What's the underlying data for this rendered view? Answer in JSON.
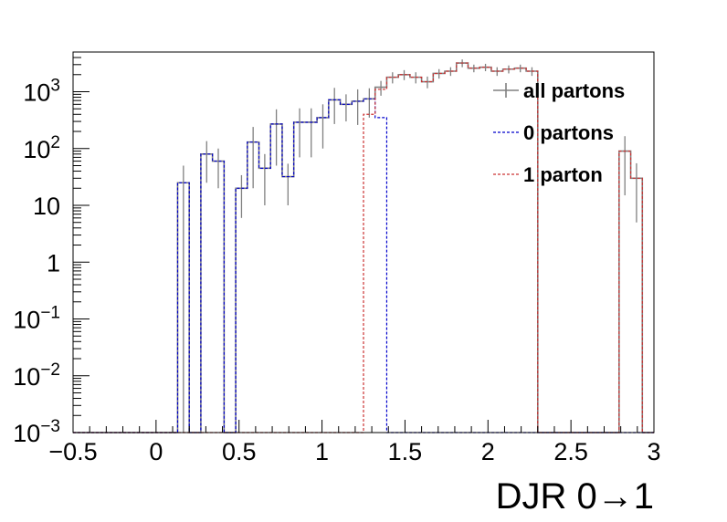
{
  "chart_data": {
    "type": "line",
    "xlabel": "DJR 0→1",
    "ylabel": "",
    "title": "",
    "xlim": [
      -0.5,
      3
    ],
    "ylim": [
      0.001,
      5000
    ],
    "yscale": "log",
    "x_ticks": [
      "−0.5",
      "0",
      "0.5",
      "1",
      "1.5",
      "2",
      "2.5",
      "3"
    ],
    "x_tick_values": [
      -0.5,
      0,
      0.5,
      1,
      1.5,
      2,
      2.5,
      3
    ],
    "y_tick_values": [
      0.001,
      0.01,
      0.1,
      1,
      10,
      100,
      1000
    ],
    "y_ticks": [
      {
        "base": "10",
        "exp": "−3"
      },
      {
        "base": "10",
        "exp": "−2"
      },
      {
        "base": "10",
        "exp": "−1"
      },
      {
        "base": "1",
        "exp": ""
      },
      {
        "base": "10",
        "exp": ""
      },
      {
        "base": "10",
        "exp": "2"
      },
      {
        "base": "10",
        "exp": "3"
      }
    ],
    "bin_width": 0.07,
    "x_start": -0.5,
    "grid": false,
    "legend_position": "top-right",
    "series": [
      {
        "name": "all partons",
        "color": "#808080",
        "style": "solid",
        "values": [
          0.001,
          0.001,
          0.001,
          0.001,
          0.001,
          0.001,
          0.001,
          0.001,
          0.001,
          25,
          0.001,
          80,
          60,
          0.001,
          20,
          130,
          45,
          270,
          32,
          290,
          290,
          350,
          720,
          600,
          680,
          750,
          1200,
          1800,
          2000,
          1800,
          1500,
          2100,
          2300,
          3200,
          2600,
          2700,
          2300,
          2500,
          2600,
          2300,
          0.001,
          0.001,
          0.001,
          0.001,
          0.001,
          0.001,
          0.001,
          90,
          30,
          0.001
        ],
        "errors": [
          0,
          0,
          0,
          0,
          0,
          0,
          0,
          0,
          0,
          25,
          0,
          55,
          40,
          0,
          14,
          110,
          35,
          220,
          22,
          220,
          220,
          250,
          450,
          300,
          420,
          400,
          350,
          400,
          400,
          400,
          350,
          400,
          400,
          500,
          400,
          400,
          400,
          400,
          400,
          400,
          0,
          0,
          0,
          0,
          0,
          0,
          0,
          75,
          25,
          0
        ]
      },
      {
        "name": "0 partons",
        "color": "#0000cc",
        "style": "dashed",
        "values": [
          0.001,
          0.001,
          0.001,
          0.001,
          0.001,
          0.001,
          0.001,
          0.001,
          0.001,
          25,
          0.001,
          80,
          60,
          0.001,
          20,
          130,
          45,
          270,
          32,
          290,
          290,
          350,
          720,
          600,
          680,
          750,
          350,
          0.001,
          0.001,
          0.001,
          0.001,
          0.001,
          0.001,
          0.001,
          0.001,
          0.001,
          0.001,
          0.001,
          0.001,
          0.001,
          0.001,
          0.001,
          0.001,
          0.001,
          0.001,
          0.001,
          0.001,
          0.001,
          0.001,
          0.001
        ]
      },
      {
        "name": "1 parton",
        "color": "#cc3333",
        "style": "dashed",
        "values": [
          0.001,
          0.001,
          0.001,
          0.001,
          0.001,
          0.001,
          0.001,
          0.001,
          0.001,
          0.001,
          0.001,
          0.001,
          0.001,
          0.001,
          0.001,
          0.001,
          0.001,
          0.001,
          0.001,
          0.001,
          0.001,
          0.001,
          0.001,
          0.001,
          0.001,
          400,
          1100,
          1800,
          2000,
          1800,
          1500,
          2100,
          2300,
          3200,
          2600,
          2700,
          2300,
          2500,
          2600,
          2300,
          0.001,
          0.001,
          0.001,
          0.001,
          0.001,
          0.001,
          0.001,
          90,
          30,
          0.001
        ]
      }
    ]
  }
}
